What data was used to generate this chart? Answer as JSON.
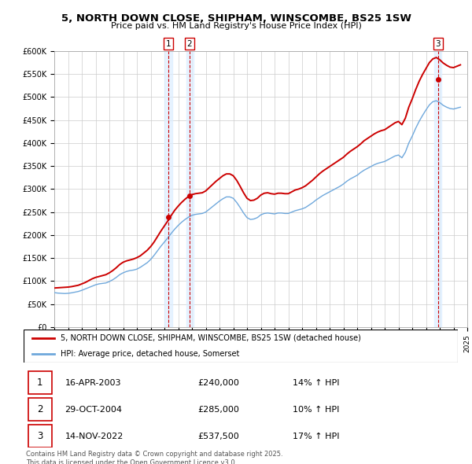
{
  "title": "5, NORTH DOWN CLOSE, SHIPHAM, WINSCOMBE, BS25 1SW",
  "subtitle": "Price paid vs. HM Land Registry's House Price Index (HPI)",
  "ylabel_ticks": [
    "£0",
    "£50K",
    "£100K",
    "£150K",
    "£200K",
    "£250K",
    "£300K",
    "£350K",
    "£400K",
    "£450K",
    "£500K",
    "£550K",
    "£600K"
  ],
  "ytick_values": [
    0,
    50000,
    100000,
    150000,
    200000,
    250000,
    300000,
    350000,
    400000,
    450000,
    500000,
    550000,
    600000
  ],
  "hpi_color": "#6fa8dc",
  "price_color": "#cc0000",
  "background_color": "#ffffff",
  "grid_color": "#cccccc",
  "shade_color": "#ddeeff",
  "legend_label_red": "5, NORTH DOWN CLOSE, SHIPHAM, WINSCOMBE, BS25 1SW (detached house)",
  "legend_label_blue": "HPI: Average price, detached house, Somerset",
  "transactions": [
    {
      "num": 1,
      "date": "16-APR-2003",
      "price": 240000,
      "pct": "14%",
      "dir": "↑"
    },
    {
      "num": 2,
      "date": "29-OCT-2004",
      "price": 285000,
      "pct": "10%",
      "dir": "↑"
    },
    {
      "num": 3,
      "date": "14-NOV-2022",
      "price": 537500,
      "pct": "17%",
      "dir": "↑"
    }
  ],
  "copyright": "Contains HM Land Registry data © Crown copyright and database right 2025.\nThis data is licensed under the Open Government Licence v3.0.",
  "years": [
    1995.0,
    1995.25,
    1995.5,
    1995.75,
    1996.0,
    1996.25,
    1996.5,
    1996.75,
    1997.0,
    1997.25,
    1997.5,
    1997.75,
    1998.0,
    1998.25,
    1998.5,
    1998.75,
    1999.0,
    1999.25,
    1999.5,
    1999.75,
    2000.0,
    2000.25,
    2000.5,
    2000.75,
    2001.0,
    2001.25,
    2001.5,
    2001.75,
    2002.0,
    2002.25,
    2002.5,
    2002.75,
    2003.0,
    2003.25,
    2003.5,
    2003.75,
    2004.0,
    2004.25,
    2004.5,
    2004.75,
    2005.0,
    2005.25,
    2005.5,
    2005.75,
    2006.0,
    2006.25,
    2006.5,
    2006.75,
    2007.0,
    2007.25,
    2007.5,
    2007.75,
    2008.0,
    2008.25,
    2008.5,
    2008.75,
    2009.0,
    2009.25,
    2009.5,
    2009.75,
    2010.0,
    2010.25,
    2010.5,
    2010.75,
    2011.0,
    2011.25,
    2011.5,
    2011.75,
    2012.0,
    2012.25,
    2012.5,
    2012.75,
    2013.0,
    2013.25,
    2013.5,
    2013.75,
    2014.0,
    2014.25,
    2014.5,
    2014.75,
    2015.0,
    2015.25,
    2015.5,
    2015.75,
    2016.0,
    2016.25,
    2016.5,
    2016.75,
    2017.0,
    2017.25,
    2017.5,
    2017.75,
    2018.0,
    2018.25,
    2018.5,
    2018.75,
    2019.0,
    2019.25,
    2019.5,
    2019.75,
    2020.0,
    2020.25,
    2020.5,
    2020.75,
    2021.0,
    2021.25,
    2021.5,
    2021.75,
    2022.0,
    2022.25,
    2022.5,
    2022.75,
    2023.0,
    2023.25,
    2023.5,
    2023.75,
    2024.0,
    2024.25,
    2024.5
  ],
  "hpi": [
    75000,
    74000,
    73500,
    73000,
    73500,
    74500,
    76000,
    77500,
    80000,
    83000,
    86000,
    89000,
    92000,
    94000,
    95000,
    96000,
    99000,
    103000,
    108000,
    114000,
    118000,
    121000,
    123000,
    124000,
    126000,
    130000,
    135000,
    140000,
    147000,
    156000,
    166000,
    176000,
    185000,
    194000,
    204000,
    213000,
    221000,
    228000,
    234000,
    239000,
    243000,
    245000,
    246000,
    247000,
    250000,
    256000,
    262000,
    268000,
    274000,
    279000,
    283000,
    283000,
    280000,
    271000,
    260000,
    248000,
    238000,
    234000,
    235000,
    238000,
    244000,
    247000,
    248000,
    247000,
    246000,
    248000,
    248000,
    247000,
    247000,
    250000,
    253000,
    255000,
    257000,
    260000,
    265000,
    270000,
    276000,
    281000,
    286000,
    290000,
    294000,
    298000,
    302000,
    306000,
    311000,
    317000,
    322000,
    326000,
    330000,
    336000,
    341000,
    345000,
    349000,
    353000,
    356000,
    358000,
    360000,
    364000,
    368000,
    372000,
    374000,
    368000,
    380000,
    400000,
    415000,
    432000,
    447000,
    460000,
    472000,
    483000,
    490000,
    492000,
    488000,
    482000,
    478000,
    475000,
    474000,
    476000,
    478000
  ],
  "price": [
    85000,
    85500,
    86000,
    86500,
    87000,
    88000,
    89500,
    91000,
    94000,
    97000,
    101000,
    105000,
    108000,
    110000,
    112000,
    114000,
    118000,
    123000,
    129000,
    136000,
    141000,
    144000,
    146000,
    148000,
    151000,
    155000,
    161000,
    167000,
    175000,
    185000,
    197000,
    209000,
    220000,
    231000,
    243000,
    254000,
    263000,
    271000,
    278000,
    284000,
    288000,
    290000,
    291000,
    292000,
    296000,
    303000,
    310000,
    317000,
    323000,
    329000,
    333000,
    333000,
    329000,
    319000,
    306000,
    292000,
    280000,
    275000,
    276000,
    280000,
    287000,
    291000,
    292000,
    290000,
    289000,
    291000,
    291000,
    290000,
    290000,
    294000,
    298000,
    300000,
    303000,
    307000,
    313000,
    319000,
    326000,
    333000,
    339000,
    344000,
    349000,
    354000,
    359000,
    364000,
    369000,
    376000,
    382000,
    387000,
    392000,
    398000,
    405000,
    410000,
    415000,
    420000,
    424000,
    427000,
    429000,
    434000,
    439000,
    444000,
    447000,
    440000,
    454000,
    478000,
    496000,
    516000,
    534000,
    549000,
    562000,
    575000,
    583000,
    586000,
    581000,
    574000,
    569000,
    565000,
    564000,
    567000,
    570000
  ],
  "transaction_dates": [
    2003.29,
    2004.83,
    2022.87
  ],
  "transaction_prices": [
    240000,
    285000,
    537500
  ],
  "span_ranges": [
    [
      2003.0,
      2003.6
    ],
    [
      2004.58,
      2005.1
    ],
    [
      2022.62,
      2023.12
    ]
  ],
  "xmin": 1995,
  "xmax": 2025,
  "ymin": 0,
  "ymax": 600000
}
